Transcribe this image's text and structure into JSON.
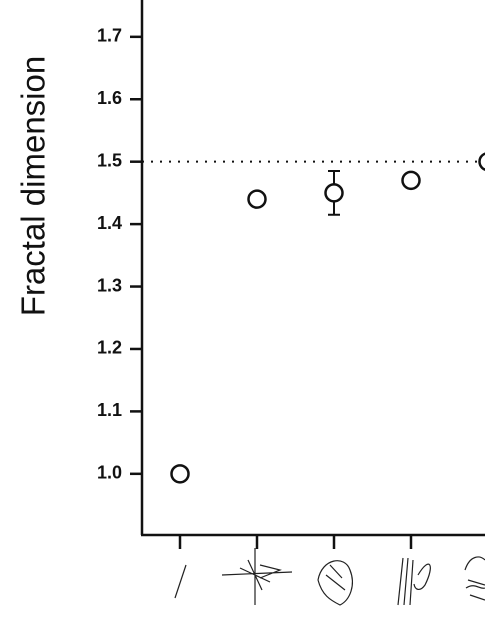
{
  "chart_data": {
    "type": "scatter",
    "y_label": "Fractal dimension",
    "categories": [
      null,
      null,
      null,
      null,
      null
    ],
    "series": [
      {
        "color": "#111111",
        "values": [
          1.0,
          1.44,
          1.45,
          1.47,
          1.5
        ],
        "errors": [
          null,
          null,
          0.035,
          null,
          null
        ]
      }
    ],
    "ylim": [
      0.902,
      1.759
    ],
    "yticks": [
      {
        "value": 1.0,
        "label": "1.0"
      },
      1.1,
      1.2,
      1.3,
      1.4,
      1.5,
      1.6,
      1.7
    ],
    "reference_line": 1.5
  }
}
